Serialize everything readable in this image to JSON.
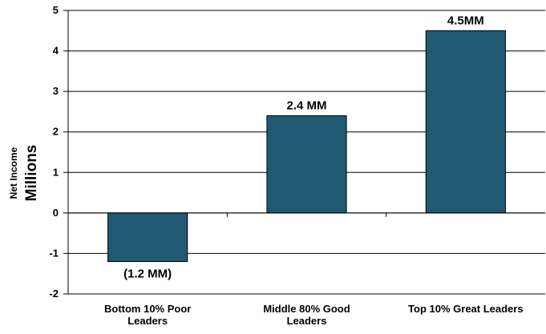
{
  "chart_data": {
    "type": "bar",
    "categories": [
      [
        "Bottom 10%  Poor",
        "Leaders"
      ],
      [
        "Middle 80% Good",
        "Leaders"
      ],
      [
        "Top 10% Great Leaders"
      ]
    ],
    "values": [
      -1.2,
      2.4,
      4.5
    ],
    "data_labels": [
      "(1.2 MM)",
      "2.4 MM",
      "4.5MM"
    ],
    "ylabel": "Net Income",
    "ylabel_units": "Millions",
    "ylim": [
      -2,
      5
    ],
    "yticks": [
      -2,
      -1,
      0,
      1,
      2,
      3,
      4,
      5
    ],
    "grid": true,
    "bar_color": "#1f5a72"
  }
}
